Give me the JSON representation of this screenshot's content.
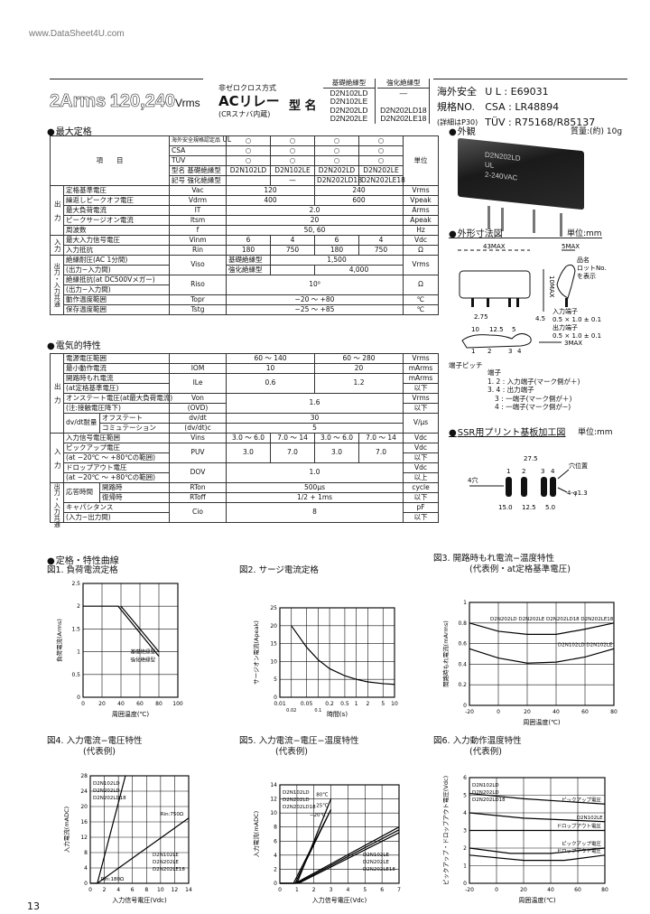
{
  "watermark": "www.DataSheet4U.com",
  "header": {
    "title_current": "2Arms",
    "title_voltage": "120,240",
    "title_unit": "Vrms",
    "relay_type": "非ゼロクロス方式",
    "relay_name": "ACリレー",
    "relay_note": "(CRスナバ内蔵)",
    "model_label": "型 名",
    "basic_label": "基礎絶縁型",
    "basic_models": [
      "D2N102LD",
      "D2N102LE",
      "D2N202LD",
      "D2N202LE"
    ],
    "reinforced_label": "強化絶縁型",
    "reinforced_models": [
      "—",
      "D2N202LD18",
      "D2N202LE18"
    ],
    "safety_label1": "海外安全",
    "safety_label2": "規格NO.",
    "safety_label3": "(詳細はP30)",
    "ul": "U L : E69031",
    "csa": "CSA : LR48894",
    "tuv": "TÜV : R75168/R85137"
  },
  "max_ratings": {
    "section": "最大定格",
    "approved_label": "海外安全規格認定品",
    "ul": "UL",
    "csa": "CSA",
    "tuv": "TÜV",
    "mark": "○",
    "item_label": "項　　目",
    "unit_label": "単位",
    "model_label": "型名",
    "symbol_label": "記号",
    "basic": "基礎絶縁型",
    "reinforced": "強化絶縁型",
    "models": [
      "D2N102LD",
      "D2N102LE",
      "D2N202LD",
      "D2N202LE"
    ],
    "reinforced_models": [
      "—",
      "D2N202LD18",
      "D2N202LE18"
    ],
    "cat_output": "出　力",
    "cat_input": "入力",
    "cat_common": "出力・入力共通",
    "rows": {
      "rated_v": [
        "定格基準電圧",
        "Vac",
        "120",
        "240",
        "Vrms"
      ],
      "vdrm": [
        "繰返しピークオフ電圧",
        "Vdrm",
        "400",
        "600",
        "Vpeak"
      ],
      "it": [
        "最大負荷電流",
        "IT",
        "2.0",
        "Arms"
      ],
      "itsm": [
        "ピークサージオン電流",
        "Itsm",
        "20",
        "Apeak"
      ],
      "freq": [
        "周波数",
        "f",
        "50, 60",
        "Hz"
      ],
      "vinm": [
        "最大入力信号電圧",
        "Vinm",
        "6",
        "4",
        "6",
        "4",
        "Vdc"
      ],
      "rin": [
        "入力抵抗",
        "Rin",
        "180",
        "750",
        "180",
        "750",
        "Ω"
      ],
      "viso": [
        "絶縁耐圧(AC 1分間)",
        "(出力−入力間)",
        "Viso",
        "基礎絶縁型",
        "1,500",
        "強化絶縁型",
        "4,000",
        "Vrms"
      ],
      "riso": [
        "絶縁抵抗(at DC500Vメガー)",
        "(出力−入力間)",
        "Riso",
        "10⁹",
        "Ω"
      ],
      "topr": [
        "動作温度範囲",
        "Topr",
        "−20 〜 +80",
        "℃"
      ],
      "tstg": [
        "保存温度範囲",
        "Tstg",
        "−25 〜 +85",
        "℃"
      ]
    }
  },
  "electrical": {
    "section": "電気的特性",
    "cat_output": "出　力",
    "cat_input": "入　力",
    "cat_common": "出力・入力共通",
    "rows": {
      "supply": [
        "電源電圧範囲",
        "",
        "60 〜 140",
        "60 〜 280",
        "Vrms"
      ],
      "iom": [
        "最小動作電流",
        "IOM",
        "10",
        "20",
        "mArms"
      ],
      "ile": [
        "開路時もれ電流",
        "(at定格基準電圧)",
        "ILe",
        "0.6",
        "1.2",
        "mArms",
        "以下"
      ],
      "von": [
        "オンステート電圧(at最大負荷電流)",
        "(注:接触電圧降下)",
        "Von",
        "(OVD)",
        "1.6",
        "Vrms",
        "以下"
      ],
      "dvdt": [
        "dv/dt耐量",
        "オフステート",
        "dv/dt",
        "30",
        "コミュテーション",
        "(dv/dt)c",
        "5",
        "V/μs"
      ],
      "vins": [
        "入力信号電圧範囲",
        "Vins",
        "3.0 〜 6.0",
        "7.0 〜 14",
        "3.0 〜 6.0",
        "7.0 〜 14",
        "Vdc"
      ],
      "puv": [
        "ピックアップ電圧",
        "(at −20℃ 〜 +80℃の範囲)",
        "PUV",
        "3.0",
        "7.0",
        "3.0",
        "7.0",
        "Vdc",
        "以下"
      ],
      "dov": [
        "ドロップアウト電圧",
        "(at −20℃ 〜 +80℃の範囲)",
        "DOV",
        "1.0",
        "Vdc",
        "以上"
      ],
      "resp": [
        "応答時間",
        "開路時",
        "RTon",
        "500μs",
        "復帰時",
        "RToff",
        "1/2 + 1ms",
        "cycle",
        "以下"
      ],
      "cio": [
        "キャパシタンス",
        "(入力−出力間)",
        "Cio",
        "8",
        "pF",
        "以下"
      ]
    }
  },
  "appearance": {
    "section": "外観",
    "weight": "質量:(約) 10g",
    "marking": [
      "D2N202LD",
      "UL",
      "2-240VAC"
    ]
  },
  "dimensions": {
    "section": "外形寸法図",
    "unit": "単位:mm",
    "labels": [
      "43MAX",
      "5MAX",
      "10MAX",
      "3MAX",
      "2.75",
      "10",
      "12.5",
      "5",
      "4.5"
    ],
    "notes": [
      "入力端子",
      "0.5 × 1.0 ± 0.1",
      "出力端子",
      "0.5 × 1.0 ± 0.1",
      "品名",
      "ロットNo.",
      "を表示"
    ],
    "pins": [
      "1",
      "2",
      "3",
      "4"
    ],
    "pin_title": "端子",
    "pin_side": "端子ピッチ",
    "pin_desc": [
      "1. 2 : 入力端子(マーク側が＋)",
      "3. 4 : 出力端子",
      "3 : 一端子(マーク側が＋)",
      "4 : 一端子(マーク側が−)"
    ]
  },
  "pcb": {
    "section": "SSR用プリント基板加工図",
    "unit": "単位:mm",
    "dims": [
      "27.5",
      "15.0",
      "12.5",
      "5.0"
    ],
    "hole": "4-φ1.3",
    "pins": [
      "1",
      "2",
      "3",
      "4"
    ],
    "label1": "4穴",
    "label2": "穴位置"
  },
  "curves_section": "定格・特性曲線",
  "page_number": "13",
  "figures": [
    {
      "title": "図1. 負荷電流定格",
      "subtitle": "",
      "xlabel": "周囲温度(℃)",
      "ylabel": "負荷電流(Arms)",
      "xlim": [
        0,
        100
      ],
      "ylim": [
        0,
        2.5
      ],
      "xticks": [
        0,
        20,
        40,
        60,
        80,
        100
      ],
      "yticks": [
        0,
        0.5,
        1.0,
        1.5,
        2.0,
        2.5
      ],
      "xlog": false,
      "series": [
        {
          "name": "基礎絶縁型",
          "points": [
            [
              0,
              2.0
            ],
            [
              37,
              2.0
            ],
            [
              80,
              0.9
            ]
          ]
        },
        {
          "name": "強化絶縁型",
          "points": [
            [
              40,
              2.0
            ],
            [
              80,
              1.0
            ]
          ]
        }
      ]
    },
    {
      "title": "図2. サージ電流定格",
      "subtitle": "",
      "xlabel": "時間(s)",
      "ylabel": "サージオン電流(Apeak)",
      "xlim": [
        0.01,
        10
      ],
      "ylim": [
        0,
        25
      ],
      "xticks": [
        0.01,
        0.02,
        0.05,
        0.1,
        0.2,
        0.5,
        1,
        2,
        5,
        10
      ],
      "yticks": [
        0,
        5,
        10,
        15,
        20,
        25
      ],
      "xlog": true,
      "series": [
        {
          "name": "",
          "points": [
            [
              0.02,
              20
            ],
            [
              0.05,
              14
            ],
            [
              0.1,
              10.5
            ],
            [
              0.2,
              8
            ],
            [
              0.5,
              6
            ],
            [
              1,
              5
            ],
            [
              2,
              4.3
            ],
            [
              5,
              3.8
            ],
            [
              10,
              3.6
            ]
          ]
        }
      ]
    },
    {
      "title": "図3. 開路時もれ電流−温度特性",
      "subtitle": "(代表例・at定格基準電圧)",
      "xlabel": "周囲温度(℃)",
      "ylabel": "開路時もれ電流(mArms)",
      "xlim": [
        -20,
        80
      ],
      "ylim": [
        0,
        1.0
      ],
      "xticks": [
        -20,
        0,
        20,
        40,
        60,
        80
      ],
      "yticks": [
        0,
        0.2,
        0.4,
        0.6,
        0.8,
        1.0
      ],
      "xlog": false,
      "series": [
        {
          "name": "D2N202LD D2N202LE D2N202LD18 D2N202LE18",
          "points": [
            [
              -20,
              0.8
            ],
            [
              0,
              0.72
            ],
            [
              20,
              0.69
            ],
            [
              40,
              0.69
            ],
            [
              60,
              0.74
            ],
            [
              80,
              0.8
            ]
          ]
        },
        {
          "name": "D2N102LD D2N102LE",
          "points": [
            [
              -20,
              0.55
            ],
            [
              0,
              0.46
            ],
            [
              20,
              0.41
            ],
            [
              40,
              0.42
            ],
            [
              60,
              0.47
            ],
            [
              80,
              0.55
            ]
          ]
        }
      ]
    },
    {
      "title": "図4. 入力電流−電圧特性",
      "subtitle": "(代表例)",
      "xlabel": "入力信号電圧(Vdc)",
      "ylabel": "入力電流(mADC)",
      "xlim": [
        0,
        14
      ],
      "ylim": [
        0,
        28
      ],
      "xticks": [
        0,
        2,
        4,
        6,
        8,
        10,
        12,
        14
      ],
      "yticks": [
        0,
        4,
        8,
        12,
        16,
        20,
        24,
        28
      ],
      "xlog": false,
      "series": [
        {
          "name": "Rin:180Ω",
          "points": [
            [
              0,
              0
            ],
            [
              1,
              0
            ],
            [
              5,
              28
            ]
          ]
        },
        {
          "name": "Rin:750Ω",
          "points": [
            [
              1,
              0
            ],
            [
              14,
              17
            ]
          ]
        }
      ],
      "annotations": [
        "D2N102LD",
        "D2N202LD",
        "D2N202LD18",
        "D2N102LE",
        "D2N202LE",
        "D2N202LE18"
      ]
    },
    {
      "title": "図5. 入力電流−電圧−温度特性",
      "subtitle": "(代表例)",
      "xlabel": "入力信号電圧(Vdc)",
      "ylabel": "入力電流(mADC)",
      "xlim": [
        0,
        7
      ],
      "ylim": [
        0,
        14
      ],
      "xticks": [
        0,
        1,
        2,
        3,
        4,
        5,
        6,
        7
      ],
      "yticks": [
        0,
        2,
        4,
        6,
        8,
        10,
        12,
        14
      ],
      "xlog": false,
      "series": [
        {
          "name": "−20℃",
          "points": [
            [
              0,
              0
            ],
            [
              0.8,
              0
            ],
            [
              2.9,
              10
            ]
          ]
        },
        {
          "name": "25℃",
          "points": [
            [
              0,
              0
            ],
            [
              0.9,
              0
            ],
            [
              3,
              10.5
            ]
          ]
        },
        {
          "name": "80℃",
          "points": [
            [
              0,
              0
            ],
            [
              1,
              0
            ],
            [
              3,
              12
            ]
          ]
        },
        {
          "name": "",
          "points": [
            [
              0.9,
              0
            ],
            [
              7,
              8
            ]
          ]
        },
        {
          "name": "",
          "points": [
            [
              1,
              0
            ],
            [
              7,
              7.6
            ]
          ]
        },
        {
          "name": "",
          "points": [
            [
              1.1,
              0
            ],
            [
              7,
              7.2
            ]
          ]
        }
      ],
      "annotations": [
        "D2N102LD",
        "D2N202LD",
        "D2N202LD18",
        "D2N102LE",
        "D2N202LE",
        "D2N202LE18"
      ]
    },
    {
      "title": "図6. 入力動作温度特性",
      "subtitle": "(代表例)",
      "xlabel": "周囲温度(℃)",
      "ylabel": "ピックアップ・ドロップアウト電圧(Vdc)",
      "xlim": [
        -20,
        80
      ],
      "ylim": [
        0,
        6
      ],
      "xticks": [
        -20,
        0,
        20,
        40,
        60,
        80
      ],
      "yticks": [
        0,
        1,
        2,
        3,
        4,
        5,
        6
      ],
      "xlog": false,
      "series": [
        {
          "name": "ピックアップ電圧",
          "points": [
            [
              -20,
              5.1
            ],
            [
              20,
              4.8
            ],
            [
              80,
              4.5
            ]
          ]
        },
        {
          "name": "D2N102LE",
          "points": [
            [
              -20,
              4.0
            ],
            [
              20,
              3.7
            ],
            [
              80,
              3.5
            ]
          ]
        },
        {
          "name": "ドロップアウト電圧",
          "points": [
            [
              -20,
              3.0
            ],
            [
              80,
              3.0
            ]
          ]
        },
        {
          "name": "ピックアップ電圧",
          "points": [
            [
              -20,
              2.0
            ],
            [
              10,
              1.7
            ],
            [
              40,
              1.7
            ],
            [
              80,
              2.0
            ]
          ]
        },
        {
          "name": "ドロップアウト電圧",
          "points": [
            [
              -20,
              1.6
            ],
            [
              20,
              1.3
            ],
            [
              50,
              1.3
            ],
            [
              80,
              1.6
            ]
          ]
        }
      ],
      "annotations": [
        "D2N102LD",
        "D2N202LD",
        "D2N202LD18"
      ]
    }
  ]
}
